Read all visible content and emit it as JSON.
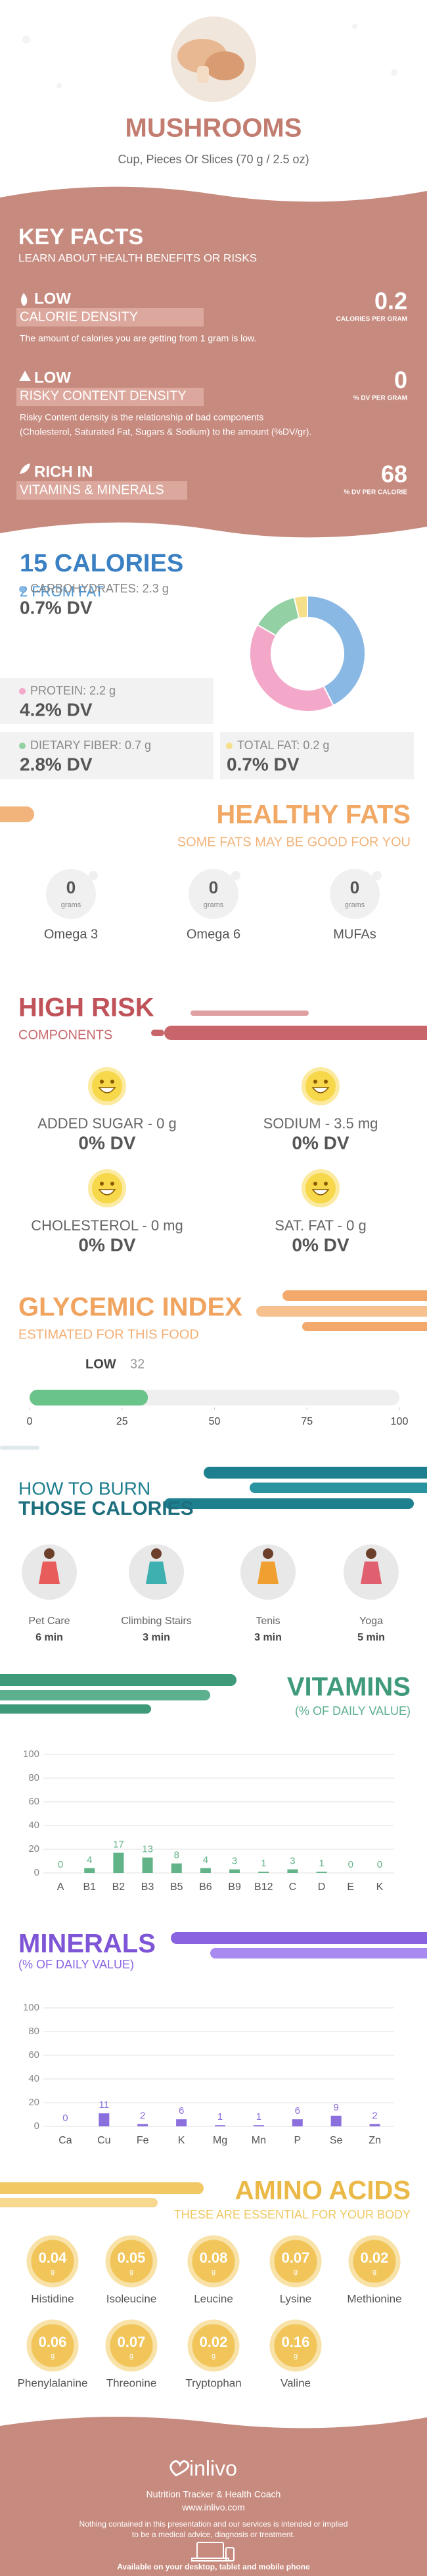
{
  "header": {
    "title": "MUSHROOMS",
    "subtitle": "Cup, Pieces Or Slices (70 g / 2.5 oz)"
  },
  "key_facts": {
    "title": "KEY FACTS",
    "subtitle": "LEARN ABOUT HEALTH BENEFITS OR RISKS",
    "items": [
      {
        "level": "LOW",
        "name": "CALORIE DENSITY",
        "value": 0.2,
        "unit": "CALORIES PER GRAM",
        "description": [
          "The amount of calories you are getting from 1 gram is low."
        ]
      },
      {
        "level": "LOW",
        "name": "RISKY CONTENT DENSITY",
        "value": 0,
        "unit": "% DV PER GRAM",
        "description": [
          "Risky Content density is the relationship of bad components",
          "(Cholesterol, Saturated Fat, Sugars & Sodium) to the amount (%DV/gr)."
        ]
      },
      {
        "level": "RICH IN",
        "name": "VITAMINS & MINERALS",
        "value": 68,
        "unit": "% DV PER CALORIE"
      }
    ]
  },
  "calories": {
    "title": "15 CALORIES",
    "subtitle": "2 FROM FAT",
    "nutrients": [
      {
        "label": "CARBOHYDRATES: 2.3 g",
        "dv": "0.7% DV",
        "grams": 2.3,
        "color": "#8ab8e4"
      },
      {
        "label": "PROTEIN: 2.2 g",
        "dv": "4.2% DV",
        "grams": 2.2,
        "color": "#f3a7c9"
      },
      {
        "label": "DIETARY FIBER: 0.7 g",
        "dv": "2.8% DV",
        "grams": 0.7,
        "color": "#93d0a4"
      },
      {
        "label": "TOTAL FAT: 0.2 g",
        "dv": "0.7% DV",
        "grams": 0.2,
        "color": "#f6df8a"
      }
    ]
  },
  "healthy_fats": {
    "title": "HEALTHY FATS",
    "subtitle": "SOME FATS MAY BE GOOD FOR YOU",
    "items": [
      {
        "value": 0,
        "unit": "grams",
        "name": "Omega 3"
      },
      {
        "value": 0,
        "unit": "grams",
        "name": "Omega 6"
      },
      {
        "value": 0,
        "unit": "grams",
        "name": "MUFAs"
      }
    ]
  },
  "high_risk": {
    "title": "HIGH RISK",
    "subtitle": "COMPONENTS",
    "items": [
      {
        "label": "ADDED SUGAR - 0 g",
        "dv": "0% DV"
      },
      {
        "label": "SODIUM - 3.5 mg",
        "dv": "0% DV"
      },
      {
        "label": "CHOLESTEROL - 0 mg",
        "dv": "0% DV"
      },
      {
        "label": "SAT. FAT - 0 g",
        "dv": "0% DV"
      }
    ]
  },
  "glycemic_index": {
    "title": "GLYCEMIC INDEX",
    "subtitle": "ESTIMATED FOR THIS FOOD",
    "level": "LOW",
    "value": 32,
    "xlim": [
      0,
      100
    ],
    "xticks": [
      0,
      25,
      50,
      75,
      100
    ]
  },
  "burn": {
    "title": [
      "HOW TO BURN",
      "THOSE CALORIES"
    ],
    "activities": [
      {
        "name": "Pet Care",
        "time": "6 min"
      },
      {
        "name": "Climbing Stairs",
        "time": "3 min"
      },
      {
        "name": "Tenis",
        "time": "3 min"
      },
      {
        "name": "Yoga",
        "time": "5 min"
      }
    ]
  },
  "vitamins": {
    "title": "VITAMINS",
    "subtitle": "(% OF DAILY VALUE)",
    "chart": {
      "type": "bar",
      "categories": [
        "A",
        "B1",
        "B2",
        "B3",
        "B5",
        "B6",
        "B9",
        "B12",
        "C",
        "D",
        "E",
        "K"
      ],
      "values": [
        0,
        4,
        17,
        13,
        8,
        4,
        3,
        1,
        3,
        1,
        0,
        0
      ],
      "color": "#62b387",
      "ylim": [
        0,
        100
      ],
      "yticks": [
        0,
        20,
        40,
        60,
        80,
        100
      ],
      "grid": true
    }
  },
  "minerals": {
    "title": "MINERALS",
    "subtitle": "(% OF DAILY VALUE)",
    "chart": {
      "type": "bar",
      "categories": [
        "Ca",
        "Cu",
        "Fe",
        "K",
        "Mg",
        "Mn",
        "P",
        "Se",
        "Zn"
      ],
      "values": [
        0,
        11,
        2,
        6,
        1,
        1,
        6,
        9,
        2
      ],
      "color": "#8b6fdc",
      "ylim": [
        0,
        100
      ],
      "yticks": [
        0,
        20,
        40,
        60,
        80,
        100
      ],
      "grid": true
    }
  },
  "amino_acids": {
    "title": "AMINO ACIDS",
    "subtitle": "THESE ARE ESSENTIAL FOR YOUR BODY",
    "items": [
      {
        "value": 0.04,
        "unit": "g",
        "name": "Histidine"
      },
      {
        "value": 0.05,
        "unit": "g",
        "name": "Isoleucine"
      },
      {
        "value": 0.08,
        "unit": "g",
        "name": "Leucine"
      },
      {
        "value": 0.07,
        "unit": "g",
        "name": "Lysine"
      },
      {
        "value": 0.02,
        "unit": "g",
        "name": "Methionine"
      },
      {
        "value": 0.06,
        "unit": "g",
        "name": "Phenylalanine"
      },
      {
        "value": 0.07,
        "unit": "g",
        "name": "Threonine"
      },
      {
        "value": 0.02,
        "unit": "g",
        "name": "Tryptophan"
      },
      {
        "value": 0.16,
        "unit": "g",
        "name": "Valine"
      }
    ]
  },
  "footer": {
    "brand": "inlivo",
    "tagline": "Nutrition Tracker & Health Coach",
    "url": "www.inlivo.com",
    "disclaimer": [
      "Nothing contained in this presentation and our services is intended or implied",
      "to be a medical advice, diagnosis or treatment."
    ],
    "availability": "Available on your desktop, tablet and mobile phone"
  }
}
